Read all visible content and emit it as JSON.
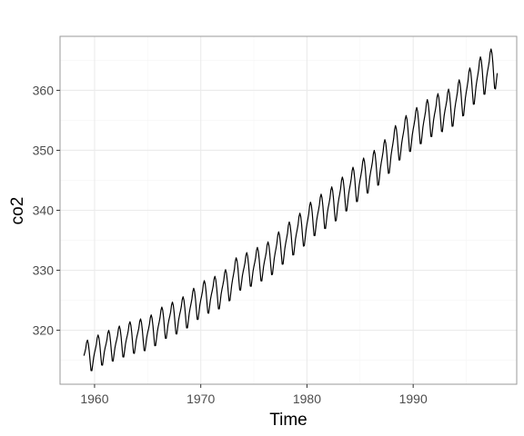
{
  "chart_data": {
    "type": "line",
    "title": "",
    "xlabel": "Time",
    "ylabel": "co2",
    "xlim": [
      1956.75,
      1999.75
    ],
    "ylim": [
      311,
      369
    ],
    "x_ticks": [
      1960,
      1970,
      1980,
      1990
    ],
    "x_tick_labels": [
      "1960",
      "1970",
      "1980",
      "1990"
    ],
    "y_ticks": [
      320,
      330,
      340,
      350,
      360
    ],
    "y_tick_labels": [
      "320",
      "330",
      "340",
      "350",
      "360"
    ],
    "grid": true,
    "legend": "none",
    "colors": {
      "line": "#000000",
      "panel_border": "#9a9a9a",
      "grid_major": "#ebebeb",
      "grid_minor": "#f5f5f5",
      "background": "#ffffff"
    },
    "series": [
      {
        "x_start": 1959.0,
        "x_step": 0.0833333333,
        "months": 468,
        "annual_mean": [
          315.8,
          316.8,
          317.5,
          318.2,
          318.9,
          319.3,
          320.0,
          321.4,
          322.1,
          323.0,
          324.5,
          325.7,
          326.3,
          327.5,
          329.6,
          330.2,
          331.1,
          332.0,
          333.8,
          335.4,
          336.8,
          338.7,
          339.9,
          341.1,
          342.8,
          344.4,
          345.9,
          347.1,
          349.0,
          351.4,
          352.9,
          354.2,
          355.5,
          356.4,
          357.1,
          358.8,
          360.8,
          362.6,
          363.8
        ],
        "monthly_seasonal_offset": [
          -0.05,
          0.6,
          1.35,
          2.55,
          3.0,
          2.3,
          0.8,
          -1.25,
          -3.15,
          -3.25,
          -2.05,
          -0.85
        ],
        "seasonal_amplitude_scale_start": 0.85,
        "seasonal_amplitude_scale_end": 1.1
      }
    ]
  }
}
